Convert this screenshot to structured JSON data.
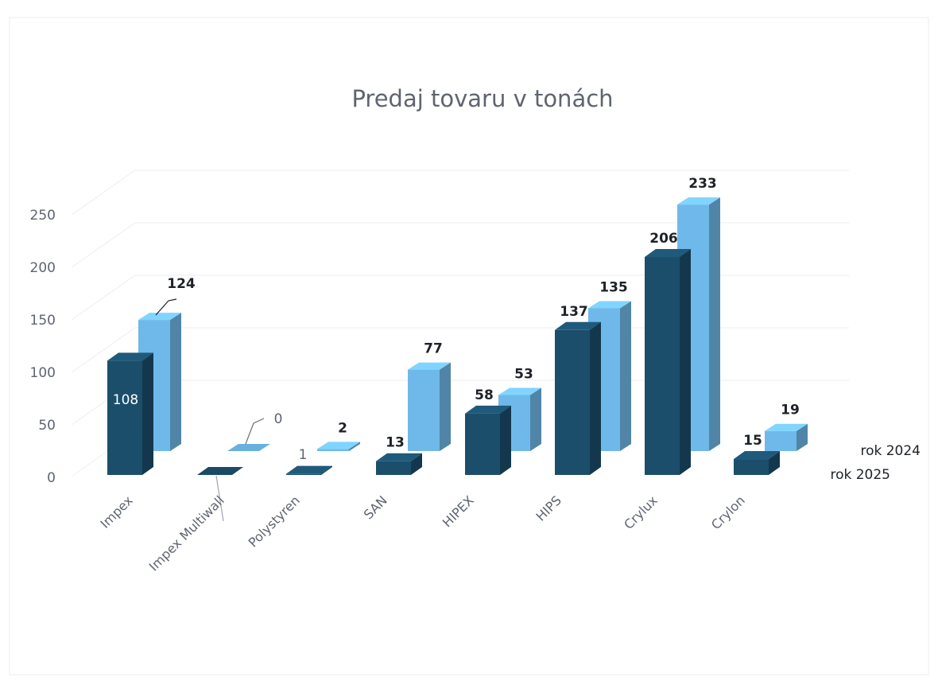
{
  "chart_data": {
    "type": "bar",
    "title": "Predaj tovaru v tonách",
    "categories": [
      "Impex",
      "Impex Multiwall",
      "Polystyren",
      "SAN",
      "HIPEX",
      "HIPS",
      "Crylux",
      "Crylon"
    ],
    "series": [
      {
        "name": "rok 2025",
        "values": [
          108,
          0,
          1,
          13,
          58,
          137,
          206,
          15
        ],
        "color": "#1b4e6b"
      },
      {
        "name": "rok 2024",
        "values": [
          124,
          0,
          2,
          77,
          53,
          135,
          233,
          19
        ],
        "color": "#6fb9ea"
      }
    ],
    "data_labels_2025": [
      "108",
      "",
      "1",
      "13",
      "58",
      "137",
      "206",
      "15"
    ],
    "data_labels_2024": [
      "124",
      "0",
      "2",
      "77",
      "53",
      "135",
      "233",
      "19"
    ],
    "y_ticks": [
      "0",
      "50",
      "100",
      "150",
      "200",
      "250"
    ],
    "ylim": [
      0,
      250
    ],
    "grid": true,
    "projection": "3d-column",
    "legend_position": "right"
  }
}
